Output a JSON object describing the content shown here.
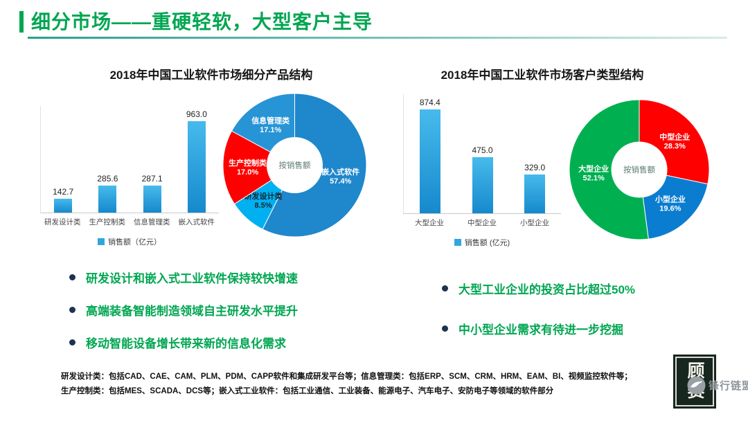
{
  "header": {
    "title": "细分市场——重硬轻软，大型客户主导"
  },
  "colors": {
    "accent_green": "#00A651",
    "rule_teal": "#2A9D8F",
    "bar_top": "#47BAEC",
    "bar_bottom": "#1689CD",
    "legend_swatch": "#2EA7DF",
    "bullet_dot": "#1D3250",
    "bullet_text": "#00A651"
  },
  "chart_data": [
    {
      "type": "bar",
      "title": "2018年中国工业软件市场细分产品结构",
      "categories": [
        "研发设计类",
        "生产控制类",
        "信息管理类",
        "嵌入式软件"
      ],
      "values": [
        142.7,
        285.6,
        287.1,
        963.0
      ],
      "legend": "销售额（亿元）",
      "xlabel": "",
      "ylabel": "",
      "ylim": [
        0,
        1000
      ],
      "grid": false,
      "legend_position": "bottom"
    },
    {
      "type": "pie",
      "center_label": "按销售额",
      "slices": [
        {
          "label": "嵌入式软件",
          "pct": 57.4,
          "color": "#1F87CB",
          "text_color": "#ffffff"
        },
        {
          "label": "研发设计类",
          "pct": 8.5,
          "color": "#00B0F0",
          "text_color": "#152535"
        },
        {
          "label": "生产控制类",
          "pct": 17.0,
          "color": "#FE0000",
          "text_color": "#ffffff"
        },
        {
          "label": "信息管理类",
          "pct": 17.1,
          "color": "#2794D6",
          "text_color": "#ffffff"
        }
      ]
    },
    {
      "type": "bar",
      "title": "2018年中国工业软件市场客户类型结构",
      "categories": [
        "大型企业",
        "中型企业",
        "小型企业"
      ],
      "values": [
        874.4,
        475.0,
        329.0
      ],
      "legend": "销售额 (亿元)",
      "xlabel": "",
      "ylabel": "",
      "ylim": [
        0,
        900
      ],
      "grid": false,
      "legend_position": "bottom"
    },
    {
      "type": "pie",
      "center_label": "按销售额",
      "slices": [
        {
          "label": "中型企业",
          "pct": 28.3,
          "color": "#FE0000",
          "text_color": "#ffffff"
        },
        {
          "label": "小型企业",
          "pct": 19.6,
          "color": "#0B7DD0",
          "text_color": "#ffffff"
        },
        {
          "label": "大型企业",
          "pct": 52.1,
          "color": "#00B050",
          "text_color": "#ffffff"
        }
      ]
    }
  ],
  "insights_left": {
    "items": [
      "研发设计和嵌入式工业软件保持较快增速",
      "高端装备智能制造领域自主研发水平提升",
      "移动智能设备增长带来新的信息化需求"
    ]
  },
  "insights_right": {
    "items": [
      "大型工业企业的投资占比超过50%",
      "中小型企业需求有待进一步挖掘"
    ]
  },
  "footnote": {
    "lines": [
      "研发设计类：包括CAD、CAE、CAM、PLM、PDM、CAPP软件和集成研发平台等；信息管理类：包括ERP、SCM、CRM、HRM、EAM、BI、视频监控软件等；",
      "生产控制类：包括MES、SCADA、DCS等；嵌入式工业软件：包括工业通信、工业装备、能源电子、汽车电子、安防电子等领域的软件部分"
    ]
  },
  "stamp": {
    "text": "顾赛"
  },
  "watermark": {
    "text": "锋行链盟"
  }
}
